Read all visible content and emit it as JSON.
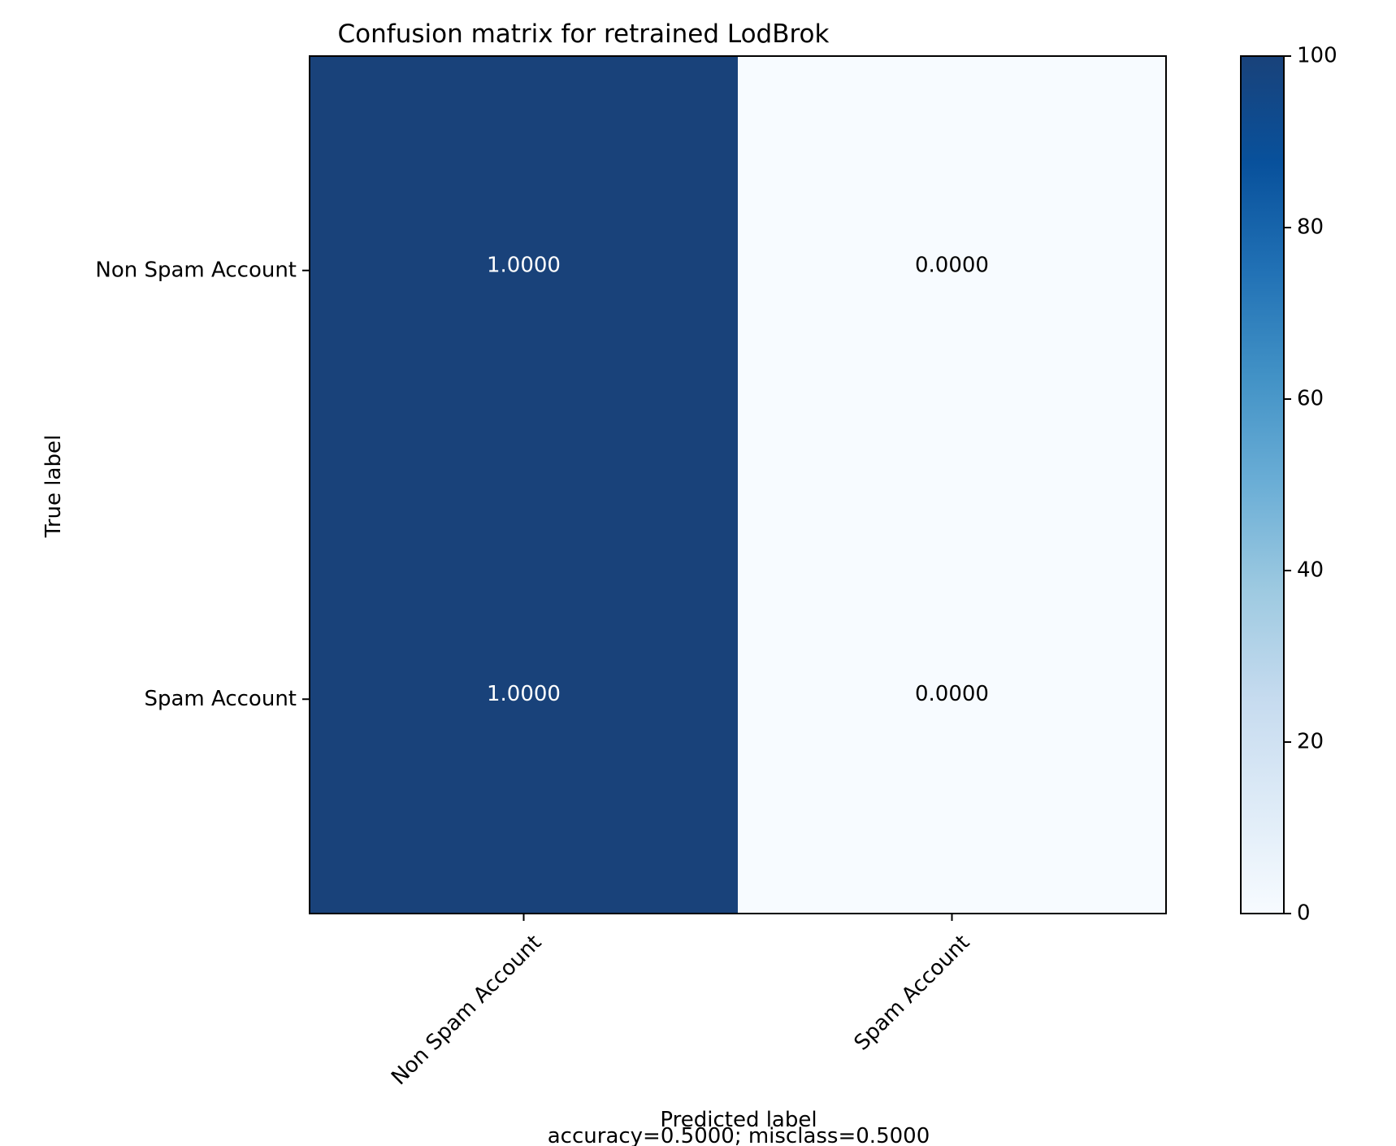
{
  "chart_data": {
    "type": "heatmap",
    "title": "Confusion matrix for retrained LodBrok",
    "xlabel": "Predicted label",
    "xlabel_note": "accuracy=0.5000; misclass=0.5000",
    "ylabel": "True label",
    "row_labels": [
      "Non Spam Account",
      "Spam Account"
    ],
    "col_labels": [
      "Non Spam Account",
      "Spam Account"
    ],
    "cell_labels": [
      [
        "1.0000",
        "0.0000"
      ],
      [
        "1.0000",
        "0.0000"
      ]
    ],
    "cell_intensity": [
      [
        100,
        0
      ],
      [
        100,
        0
      ]
    ],
    "colorbar": {
      "min": 0,
      "max": 100,
      "ticks": [
        "0",
        "20",
        "40",
        "60",
        "80",
        "100"
      ]
    },
    "colormap": "Blues",
    "colors": {
      "low": "#f7fbff",
      "high": "#19427a",
      "text_on_dark": "#ffffff",
      "text_on_light": "#000000"
    }
  }
}
